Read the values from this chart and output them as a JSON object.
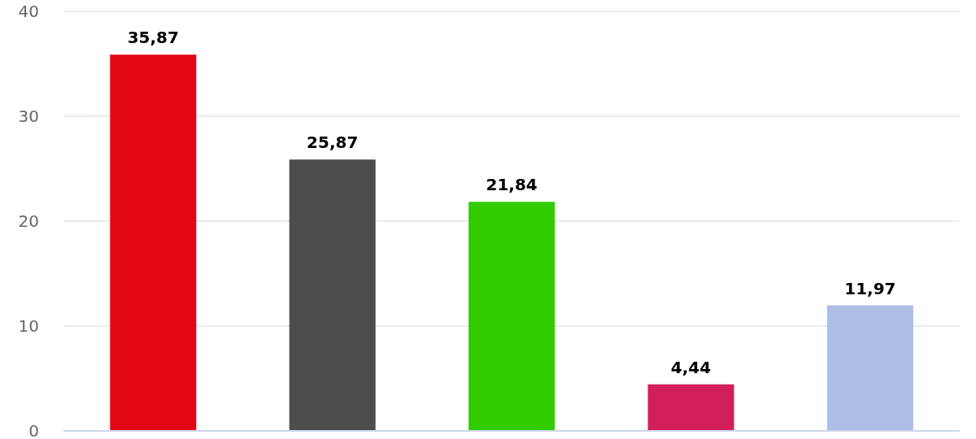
{
  "chart_data": {
    "type": "bar",
    "categories": [
      null,
      null,
      null,
      null,
      null
    ],
    "values": [
      35.87,
      25.87,
      21.84,
      4.44,
      11.97
    ],
    "value_labels": [
      "35,87",
      "25,87",
      "21,84",
      "4,44",
      "11,97"
    ],
    "colors": [
      "#e30613",
      "#4d4d4d",
      "#33cc00",
      "#d21f5a",
      "#adbfe6"
    ],
    "ylim": [
      0,
      40
    ],
    "yticks": [
      0,
      10,
      20,
      30,
      40
    ],
    "grid": "y"
  }
}
